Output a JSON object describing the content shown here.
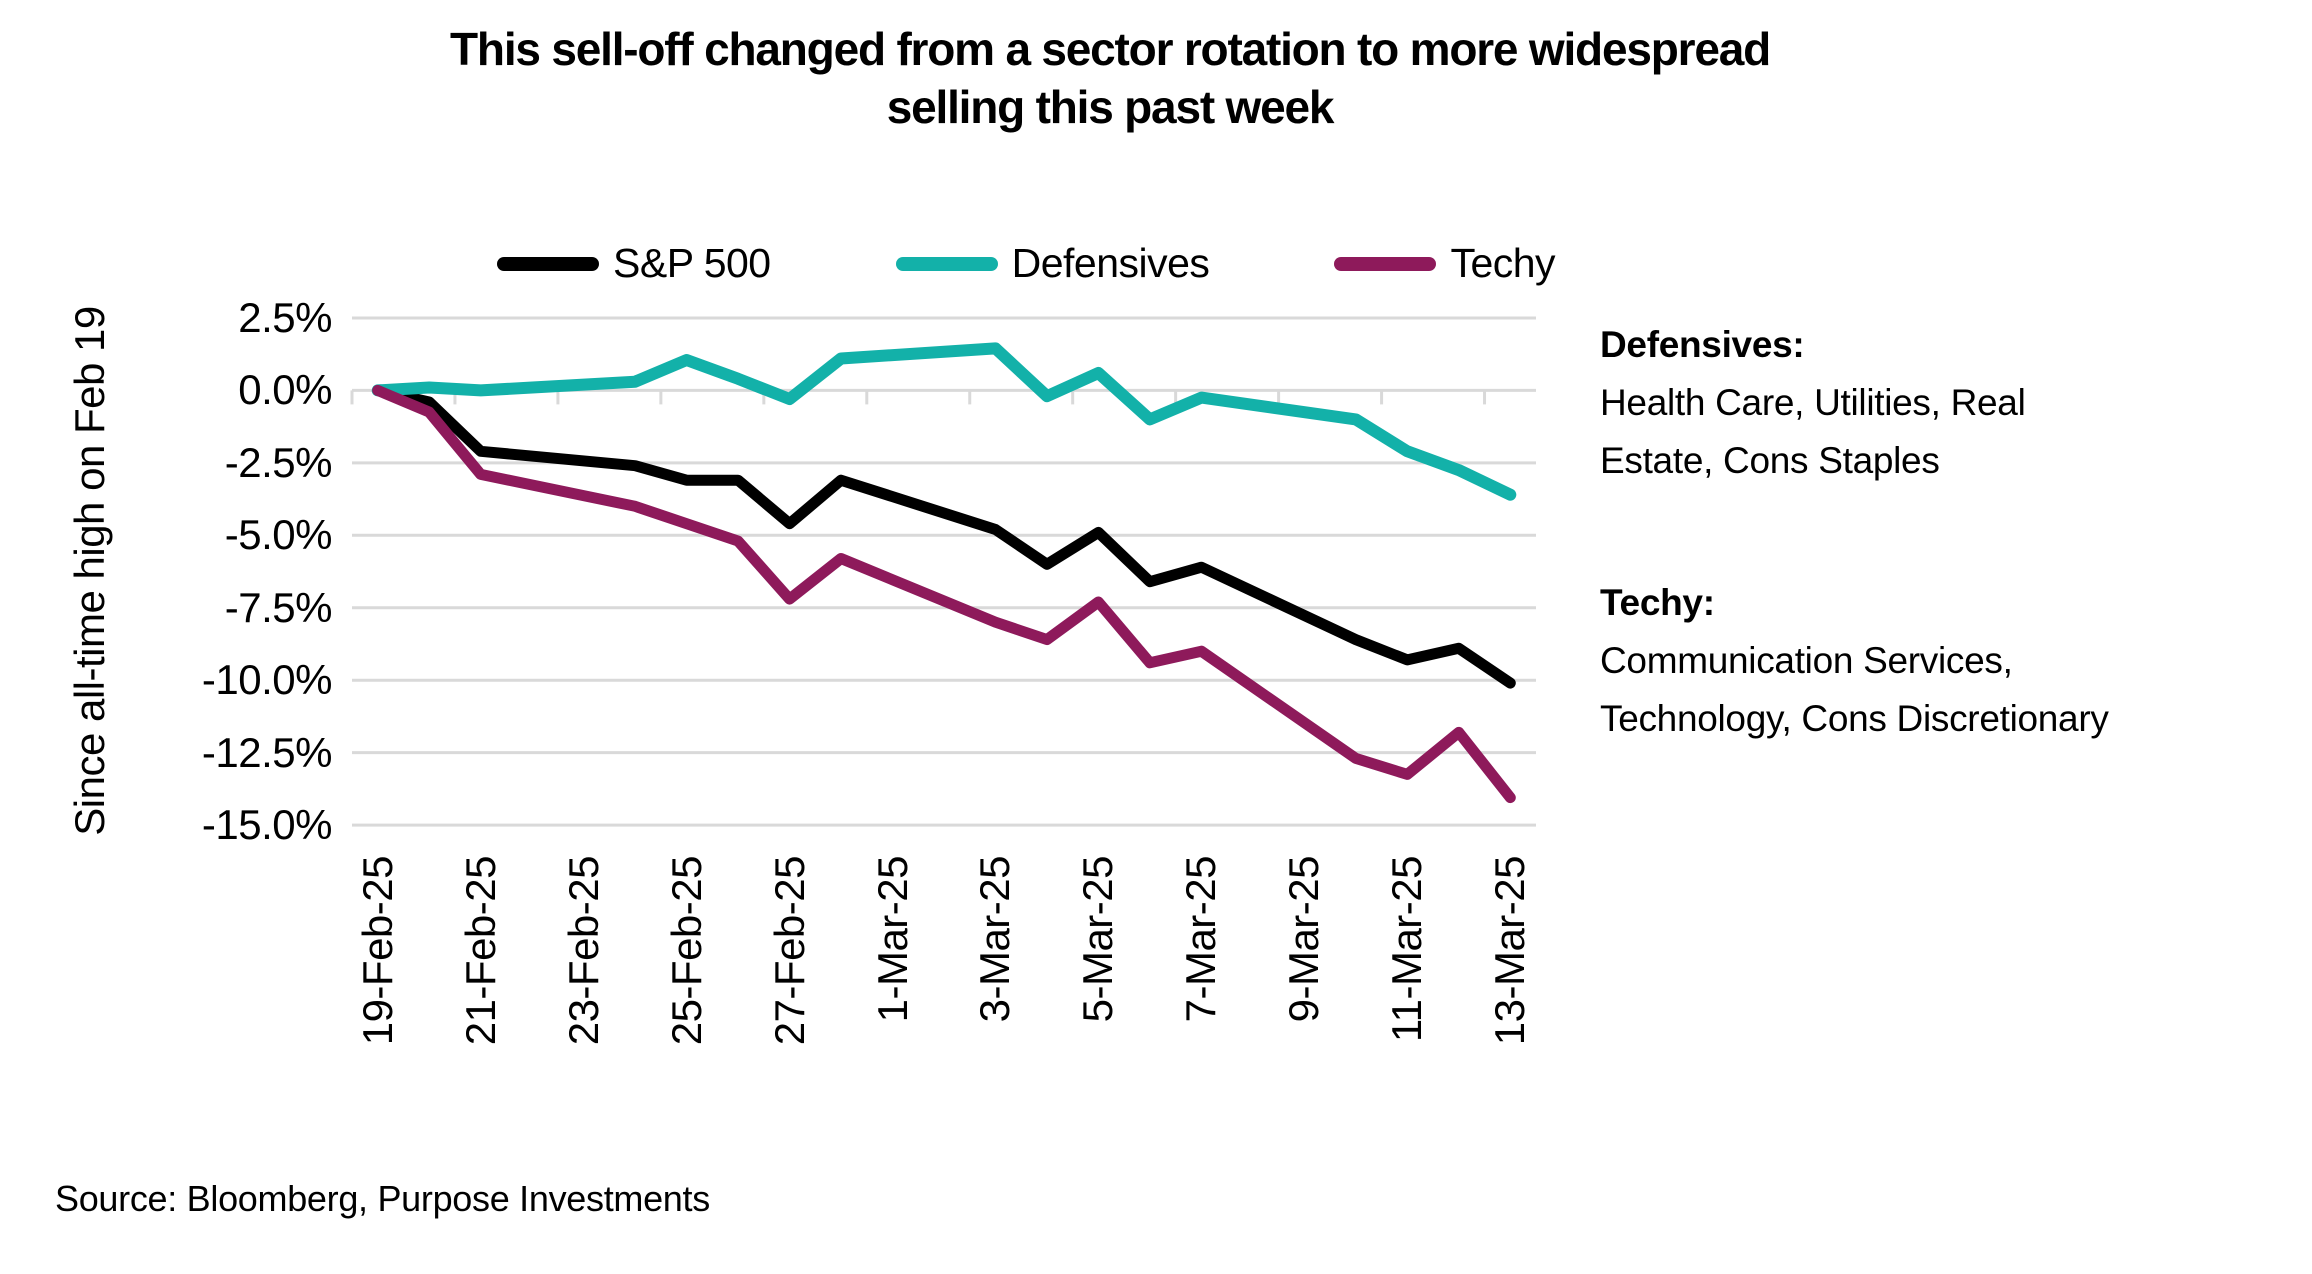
{
  "title": {
    "line1": "This sell-off changed from a sector rotation to more widespread",
    "line2": "selling this past week"
  },
  "legend": [
    {
      "key": "sp500",
      "label": "S&P 500",
      "color": "#000000"
    },
    {
      "key": "defensives",
      "label": "Defensives",
      "color": "#13B1A9"
    },
    {
      "key": "techy",
      "label": "Techy",
      "color": "#8E1A5B"
    }
  ],
  "y_axis": {
    "title": "Since all-time high on Feb 19",
    "ticks": [
      {
        "label": "2.5%",
        "value": 2.5
      },
      {
        "label": "0.0%",
        "value": 0.0
      },
      {
        "label": "-2.5%",
        "value": -2.5
      },
      {
        "label": "-5.0%",
        "value": -5.0
      },
      {
        "label": "-7.5%",
        "value": -7.5
      },
      {
        "label": "-10.0%",
        "value": -10.0
      },
      {
        "label": "-12.5%",
        "value": -12.5
      },
      {
        "label": "-15.0%",
        "value": -15.0
      }
    ]
  },
  "x_axis": {
    "tick_labels": [
      "19-Feb-25",
      "21-Feb-25",
      "23-Feb-25",
      "25-Feb-25",
      "27-Feb-25",
      "1-Mar-25",
      "3-Mar-25",
      "5-Mar-25",
      "7-Mar-25",
      "9-Mar-25",
      "11-Mar-25",
      "13-Mar-25"
    ]
  },
  "chart_data": {
    "type": "line",
    "x": [
      "19-Feb-25",
      "20-Feb-25",
      "21-Feb-25",
      "24-Feb-25",
      "25-Feb-25",
      "26-Feb-25",
      "27-Feb-25",
      "28-Feb-25",
      "3-Mar-25",
      "4-Mar-25",
      "5-Mar-25",
      "6-Mar-25",
      "7-Mar-25",
      "10-Mar-25",
      "11-Mar-25",
      "12-Mar-25",
      "13-Mar-25"
    ],
    "series": [
      {
        "name": "S&P 500",
        "color": "#000000",
        "stroke_width": 11,
        "values": [
          0.0,
          -0.4,
          -2.1,
          -2.6,
          -3.1,
          -3.1,
          -4.6,
          -3.1,
          -4.8,
          -6.0,
          -4.9,
          -6.6,
          -6.1,
          -8.6,
          -9.3,
          -8.9,
          -10.1
        ]
      },
      {
        "name": "Defensives",
        "color": "#13B1A9",
        "stroke_width": 12,
        "values": [
          0.0,
          0.1,
          0.0,
          0.3,
          1.05,
          0.4,
          -0.3,
          1.1,
          1.45,
          -0.2,
          0.6,
          -1.0,
          -0.25,
          -1.0,
          -2.1,
          -2.75,
          -3.6
        ]
      },
      {
        "name": "Techy",
        "color": "#8E1A5B",
        "stroke_width": 11,
        "values": [
          0.0,
          -0.75,
          -2.9,
          -4.0,
          -4.6,
          -5.2,
          -7.2,
          -5.8,
          -8.0,
          -8.6,
          -7.3,
          -9.4,
          -9.0,
          -12.7,
          -13.25,
          -11.8,
          -14.05
        ]
      }
    ],
    "title": "This sell-off changed from a sector rotation to more widespread selling this past week",
    "xlabel": "",
    "ylabel": "Since all-time high on Feb 19",
    "ylim": [
      -15.0,
      2.5
    ],
    "x_span_days": [
      "19-Feb-25",
      "13-Mar-25"
    ],
    "grid": true,
    "legend_position": "top",
    "note": "date axis includes weekends as straight bridge segments between trading days"
  },
  "annotations": {
    "defensives_heading": "Defensives:",
    "defensives_body": "Health Care, Utilities, Real Estate, Cons Staples",
    "techy_heading": "Techy:",
    "techy_body": "Communication Services, Technology, Cons Discretionary"
  },
  "source": "Source: Bloomberg, Purpose Investments",
  "colors": {
    "background": "#FFFFFF",
    "gridline": "#D9D9D9",
    "text": "#000000",
    "sp500": "#000000",
    "defensives": "#13B1A9",
    "techy": "#8E1A5B"
  }
}
